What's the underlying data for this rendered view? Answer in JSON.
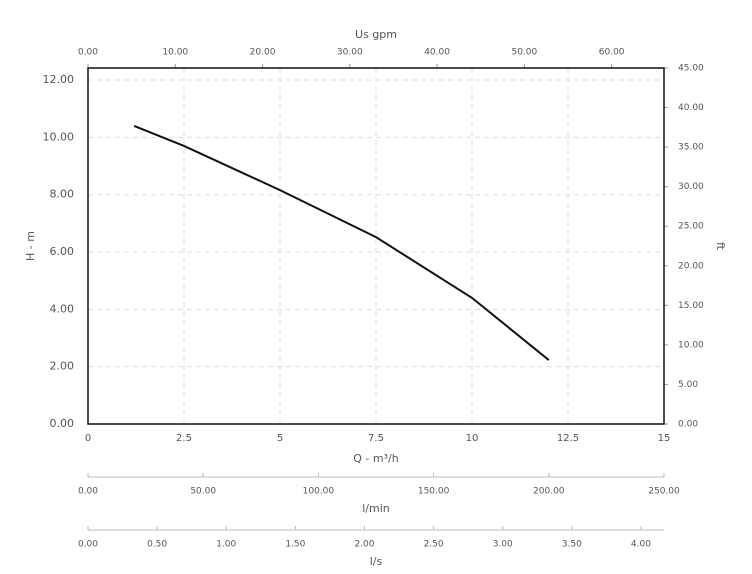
{
  "chart_data": {
    "type": "line",
    "xlabel": "Q - m³/h",
    "ylabel": "H - m",
    "y2label": "ft",
    "x2label": "Us gpm",
    "x": [
      1.2,
      2.5,
      5,
      7.5,
      10,
      12
    ],
    "values": [
      10.4,
      9.7,
      8.16,
      6.52,
      4.4,
      2.23
    ],
    "color": "#111111",
    "xlim": [
      0,
      15
    ],
    "xticks": [
      0,
      2.5,
      5,
      7.5,
      10,
      12.5,
      15
    ],
    "ylim": [
      0,
      12.42
    ],
    "yticks": [
      {
        "value": 0,
        "label": "0.00"
      },
      {
        "value": 2,
        "label": "2.00"
      },
      {
        "value": 4,
        "label": "4.00"
      },
      {
        "value": 6,
        "label": "6.00"
      },
      {
        "value": 8,
        "label": "8.00"
      },
      {
        "value": 10,
        "label": "10.00"
      },
      {
        "value": 12,
        "label": "12.00"
      }
    ],
    "y2lim": [
      0,
      45
    ],
    "y2ticks": [
      {
        "value": 0,
        "label": "0.00"
      },
      {
        "value": 5,
        "label": "5.00"
      },
      {
        "value": 10,
        "label": "10.00"
      },
      {
        "value": 15,
        "label": "15.00"
      },
      {
        "value": 20,
        "label": "20.00"
      },
      {
        "value": 25,
        "label": "25.00"
      },
      {
        "value": 30,
        "label": "30.00"
      },
      {
        "value": 35,
        "label": "35.00"
      },
      {
        "value": 40,
        "label": "40.00"
      },
      {
        "value": 45,
        "label": "45.00"
      }
    ],
    "x2lim": [
      0,
      66
    ],
    "x2ticks": [
      {
        "value": 0,
        "label": "0.00"
      },
      {
        "value": 10,
        "label": "10.00"
      },
      {
        "value": 20,
        "label": "20.00"
      },
      {
        "value": 30,
        "label": "30.00"
      },
      {
        "value": 40,
        "label": "40.00"
      },
      {
        "value": 50,
        "label": "50.00"
      },
      {
        "value": 60,
        "label": "60.00"
      }
    ],
    "grid": true,
    "extra_axes": [
      {
        "label": "l/min",
        "lim": [
          0,
          250
        ],
        "ticks": [
          {
            "value": 0,
            "label": "0.00"
          },
          {
            "value": 50,
            "label": "50.00"
          },
          {
            "value": 100,
            "label": "100.00"
          },
          {
            "value": 150,
            "label": "150.00"
          },
          {
            "value": 200,
            "label": "200.00"
          },
          {
            "value": 250,
            "label": "250.00"
          }
        ]
      },
      {
        "label": "l/s",
        "lim": [
          0,
          4.1667
        ],
        "ticks": [
          {
            "value": 0,
            "label": "0.00"
          },
          {
            "value": 0.5,
            "label": "0.50"
          },
          {
            "value": 1,
            "label": "1.00"
          },
          {
            "value": 1.5,
            "label": "1.50"
          },
          {
            "value": 2,
            "label": "2.00"
          },
          {
            "value": 2.5,
            "label": "2.50"
          },
          {
            "value": 3,
            "label": "3.00"
          },
          {
            "value": 3.5,
            "label": "3.50"
          },
          {
            "value": 4,
            "label": "4.00"
          }
        ]
      }
    ]
  }
}
